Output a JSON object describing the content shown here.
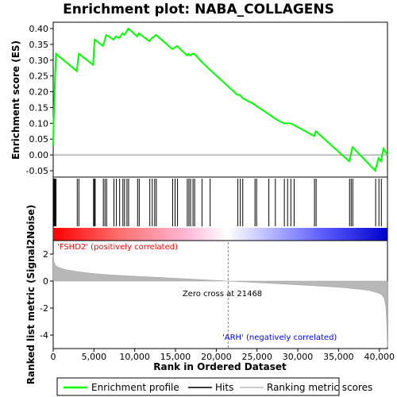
{
  "title": "Enrichment plot: NABA_COLLAGENS",
  "colors": {
    "enrichment_line": "#00ff00",
    "hits": "#000000",
    "metric_fill": "#b8b8b8",
    "positive_label": "#ff0000",
    "negative_label": "#0000ff",
    "zero_line": "#888888"
  },
  "chart_data": [
    {
      "type": "line",
      "name": "enrichment-score-panel",
      "ylabel": "Enrichment score (ES)",
      "xlim": [
        0,
        41000
      ],
      "ylim": [
        -0.07,
        0.42
      ],
      "yticks": [
        -0.05,
        0.0,
        0.05,
        0.1,
        0.15,
        0.2,
        0.25,
        0.3,
        0.35,
        0.4
      ],
      "ytick_labels": [
        "-0.05",
        "0.00",
        "0.05",
        "0.10",
        "0.15",
        "0.20",
        "0.25",
        "0.30",
        "0.35",
        "0.40"
      ],
      "series": [
        {
          "name": "Enrichment profile",
          "x": [
            0,
            60,
            150,
            250,
            350,
            2900,
            3000,
            3150,
            4900,
            5000,
            5100,
            6100,
            6300,
            6500,
            7400,
            7700,
            8100,
            8500,
            8700,
            9000,
            9200,
            10300,
            10500,
            11800,
            12100,
            12400,
            12600,
            14600,
            14900,
            15200,
            16400,
            16600,
            16800,
            17100,
            17300,
            18200,
            19200,
            22600,
            22900,
            23200,
            24700,
            24900,
            26400,
            27200,
            28300,
            28700,
            29100,
            29500,
            32000,
            32200,
            36300,
            36500,
            36700,
            39500,
            39900,
            40200,
            40500,
            41000
          ],
          "y": [
            0.03,
            0.11,
            0.18,
            0.26,
            0.32,
            0.265,
            0.29,
            0.32,
            0.285,
            0.335,
            0.365,
            0.345,
            0.36,
            0.38,
            0.365,
            0.375,
            0.37,
            0.385,
            0.38,
            0.39,
            0.4,
            0.375,
            0.385,
            0.36,
            0.37,
            0.375,
            0.38,
            0.335,
            0.34,
            0.345,
            0.315,
            0.32,
            0.315,
            0.32,
            0.32,
            0.295,
            0.27,
            0.19,
            0.19,
            0.18,
            0.16,
            0.155,
            0.13,
            0.115,
            0.1,
            0.1,
            0.1,
            0.095,
            0.06,
            0.075,
            -0.02,
            0.0,
            0.025,
            -0.05,
            -0.01,
            -0.02,
            0.02,
            0.0
          ]
        }
      ]
    },
    {
      "type": "scatter",
      "name": "hits-panel",
      "xlim": [
        0,
        41000
      ],
      "series": [
        {
          "name": "Hits",
          "x": [
            60,
            150,
            250,
            350,
            2950,
            3150,
            4950,
            5050,
            5150,
            6150,
            6350,
            6550,
            7450,
            7750,
            8150,
            8550,
            8750,
            9050,
            9250,
            10350,
            10550,
            11850,
            12150,
            12450,
            12650,
            14650,
            14950,
            15250,
            16450,
            16650,
            16850,
            17150,
            17350,
            18250,
            19250,
            22650,
            22950,
            23250,
            24750,
            24950,
            26450,
            27250,
            28350,
            28750,
            29150,
            29550,
            32050,
            32250,
            36350,
            36550,
            36750,
            39550,
            39950,
            40250
          ]
        }
      ]
    },
    {
      "type": "area",
      "name": "ranked-metric-panel",
      "xlabel": "Rank in Ordered Dataset",
      "ylabel": "Ranked list metric (Signal2Noise)",
      "xlim": [
        0,
        41000
      ],
      "ylim": [
        -5,
        3
      ],
      "xticks": [
        0,
        5000,
        10000,
        15000,
        20000,
        25000,
        30000,
        35000,
        40000
      ],
      "xtick_labels": [
        "0",
        "5,000",
        "10,000",
        "15,000",
        "20,000",
        "25,000",
        "30,000",
        "35,000",
        "40,000"
      ],
      "yticks": [
        -4,
        -2,
        0,
        2
      ],
      "ytick_labels": [
        "-4",
        "-2",
        "0",
        "2"
      ],
      "series": [
        {
          "name": "Ranking metric scores",
          "x": [
            0,
            100,
            300,
            700,
            1500,
            3000,
            5000,
            8000,
            12000,
            16000,
            19000,
            21468,
            24000,
            27000,
            30000,
            33000,
            35500,
            37500,
            38800,
            39700,
            40300,
            40600,
            40800,
            40900,
            41000
          ],
          "y": [
            2.0,
            1.4,
            1.15,
            1.0,
            0.85,
            0.7,
            0.55,
            0.42,
            0.3,
            0.18,
            0.08,
            0.0,
            -0.08,
            -0.18,
            -0.28,
            -0.38,
            -0.48,
            -0.6,
            -0.7,
            -0.85,
            -1.0,
            -1.3,
            -1.9,
            -3.0,
            -4.9
          ]
        }
      ],
      "annotations": {
        "zero_cross": "Zero cross at 21468",
        "positive": "'FSHD2' (positively correlated)",
        "negative": "'ARH' (negatively correlated)"
      }
    }
  ],
  "legend": {
    "items": [
      {
        "label": "Enrichment profile",
        "color": "#00ff00"
      },
      {
        "label": "Hits",
        "color": "#000000"
      },
      {
        "label": "Ranking metric scores",
        "color": "#b8b8b8"
      }
    ]
  }
}
